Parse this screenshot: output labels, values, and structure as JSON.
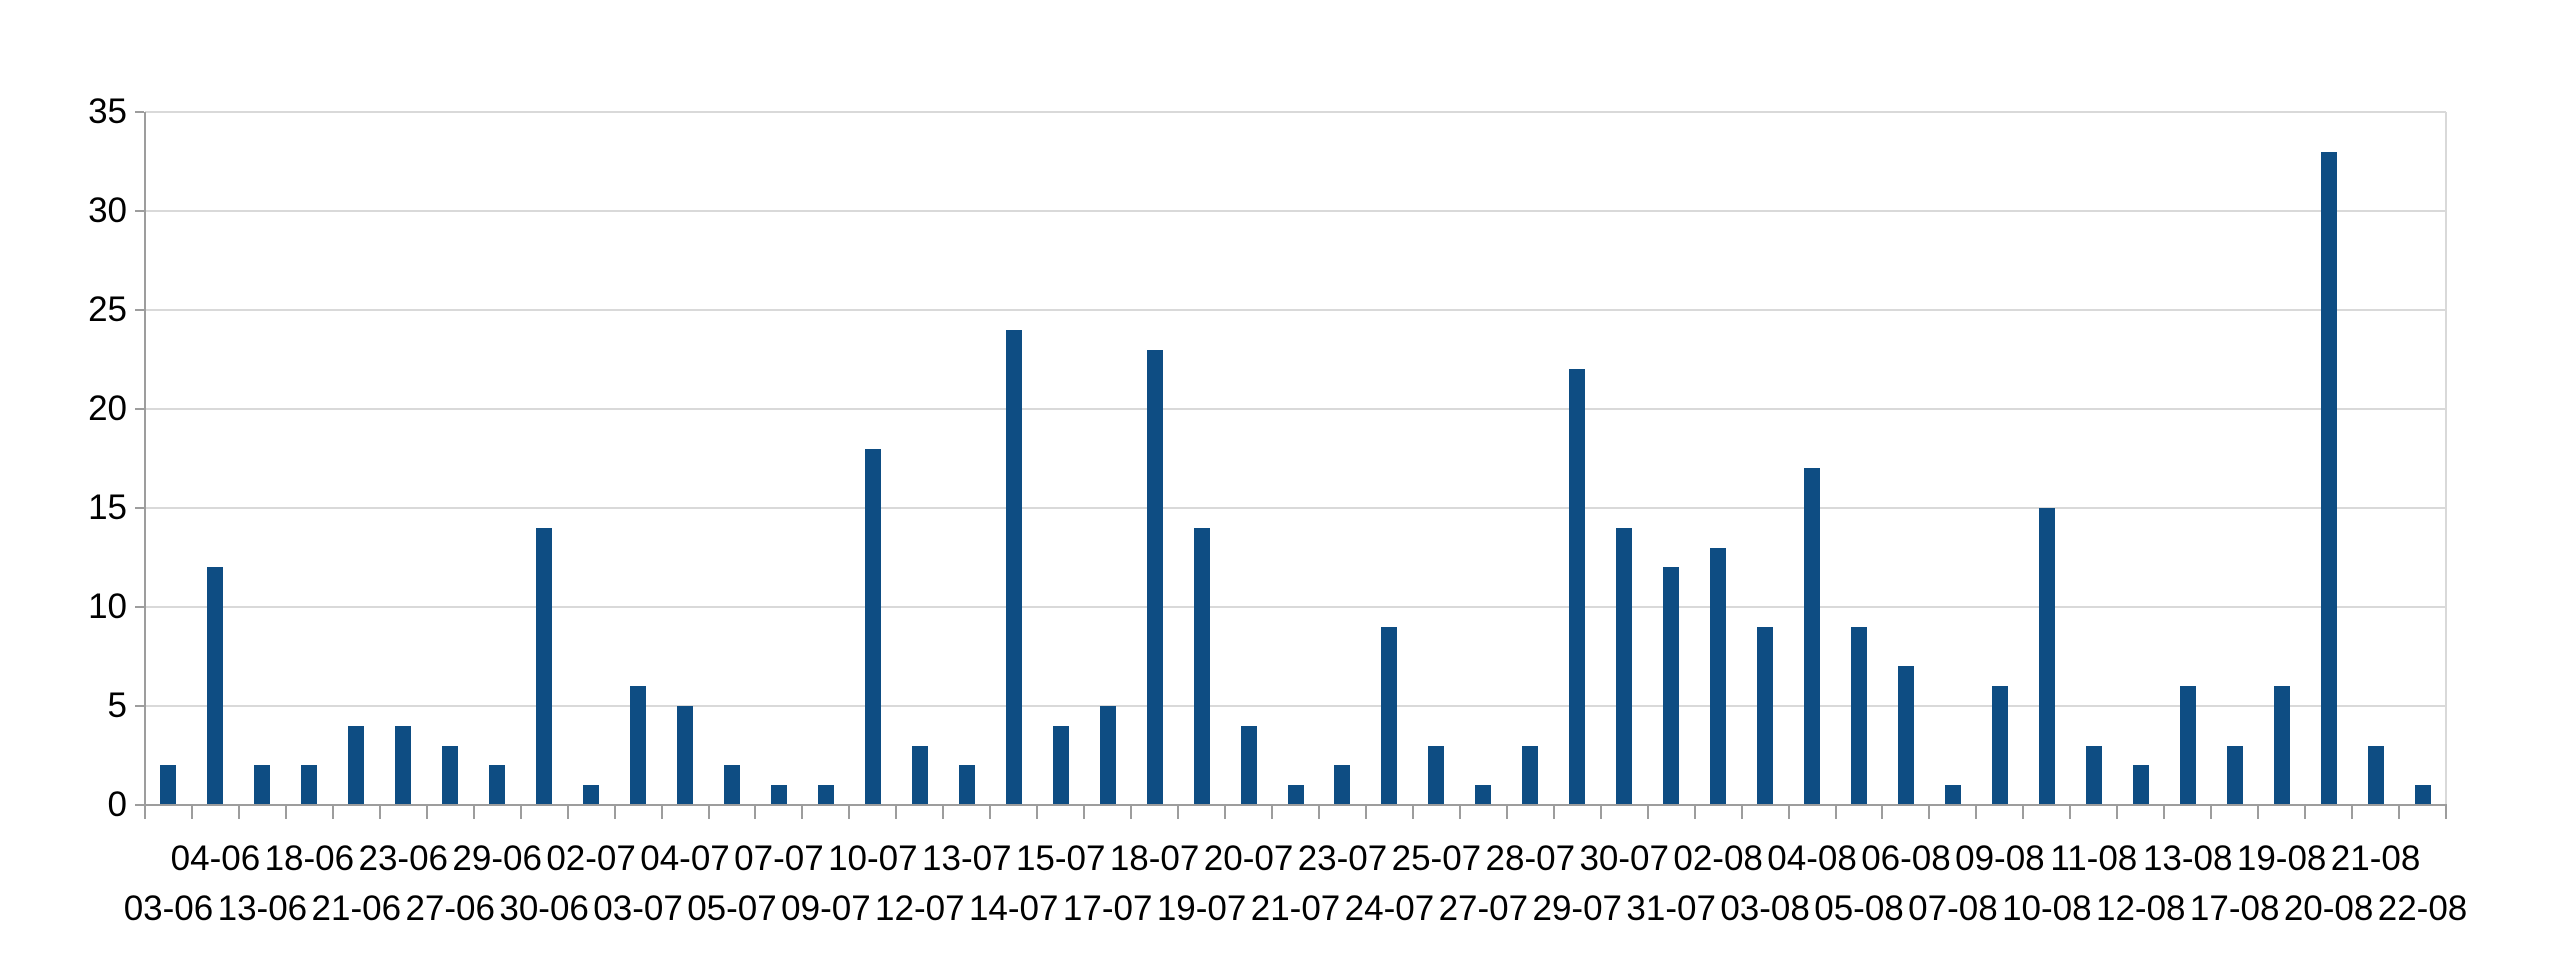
{
  "chart_data": {
    "type": "bar",
    "title": "",
    "xlabel": "",
    "ylabel": "",
    "categories": [
      "03-06",
      "04-06",
      "13-06",
      "18-06",
      "21-06",
      "23-06",
      "27-06",
      "29-06",
      "30-06",
      "02-07",
      "03-07",
      "04-07",
      "05-07",
      "07-07",
      "09-07",
      "10-07",
      "12-07",
      "13-07",
      "14-07",
      "15-07",
      "17-07",
      "18-07",
      "19-07",
      "20-07",
      "21-07",
      "23-07",
      "24-07",
      "25-07",
      "27-07",
      "28-07",
      "29-07",
      "30-07",
      "31-07",
      "02-08",
      "03-08",
      "04-08",
      "05-08",
      "06-08",
      "07-08",
      "09-08",
      "10-08",
      "11-08",
      "12-08",
      "13-08",
      "17-08",
      "19-08",
      "20-08",
      "21-08",
      "22-08"
    ],
    "values": [
      2,
      12,
      2,
      2,
      4,
      4,
      3,
      2,
      14,
      1,
      6,
      5,
      2,
      1,
      1,
      18,
      3,
      2,
      24,
      4,
      5,
      23,
      14,
      4,
      1,
      2,
      9,
      3,
      1,
      3,
      22,
      14,
      12,
      13,
      9,
      17,
      9,
      7,
      1,
      6,
      15,
      3,
      2,
      6,
      3,
      6,
      33,
      3,
      1
    ],
    "yticks": [
      0,
      5,
      10,
      15,
      20,
      25,
      30,
      35
    ],
    "ylim": [
      0,
      35
    ],
    "grid": true,
    "legend_position": "none",
    "x_label_layout": "alternating-two-rows",
    "colors": {
      "bar": "#0e4d83",
      "gridline": "#d9d9d9",
      "axis": "#9d9d9d",
      "text": "#000000",
      "background": "#ffffff"
    }
  }
}
